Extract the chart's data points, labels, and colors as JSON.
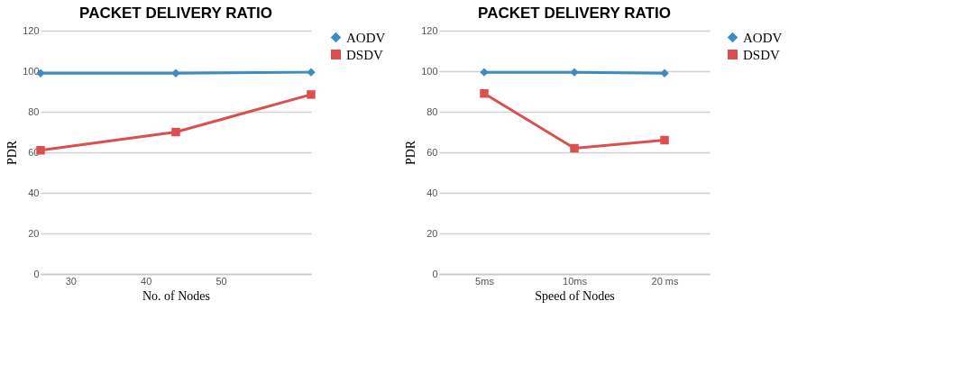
{
  "chart_data": [
    {
      "type": "line",
      "title": "PACKET DELIVERY RATIO",
      "xlabel": "No. of Nodes",
      "ylabel": "PDR",
      "x": [
        26,
        44,
        62
      ],
      "xlim": [
        26,
        62
      ],
      "xticks": [
        30,
        40,
        50
      ],
      "ylim": [
        0,
        120
      ],
      "yticks": [
        0,
        20,
        40,
        60,
        80,
        100,
        120
      ],
      "grid": "y",
      "legend": "right",
      "series": [
        {
          "name": "AODV",
          "color": "#3b8cc4",
          "marker": "diamond",
          "values": [
            99,
            99,
            99.5
          ]
        },
        {
          "name": "DSDV",
          "color": "#d9504f",
          "marker": "square",
          "values": [
            61,
            70,
            88.5
          ]
        }
      ]
    },
    {
      "type": "line",
      "title": "PACKET DELIVERY RATIO",
      "xlabel": "Speed of Nodes",
      "ylabel": "PDR",
      "categories": [
        "5ms",
        "10ms",
        "20 ms"
      ],
      "ylim": [
        0,
        120
      ],
      "yticks": [
        0,
        20,
        40,
        60,
        80,
        100,
        120
      ],
      "grid": "y",
      "legend": "right",
      "series": [
        {
          "name": "AODV",
          "color": "#3b8cc4",
          "marker": "diamond",
          "values": [
            99.5,
            99.5,
            99
          ]
        },
        {
          "name": "DSDV",
          "color": "#d9504f",
          "marker": "square",
          "values": [
            89,
            62,
            66
          ]
        }
      ]
    }
  ]
}
